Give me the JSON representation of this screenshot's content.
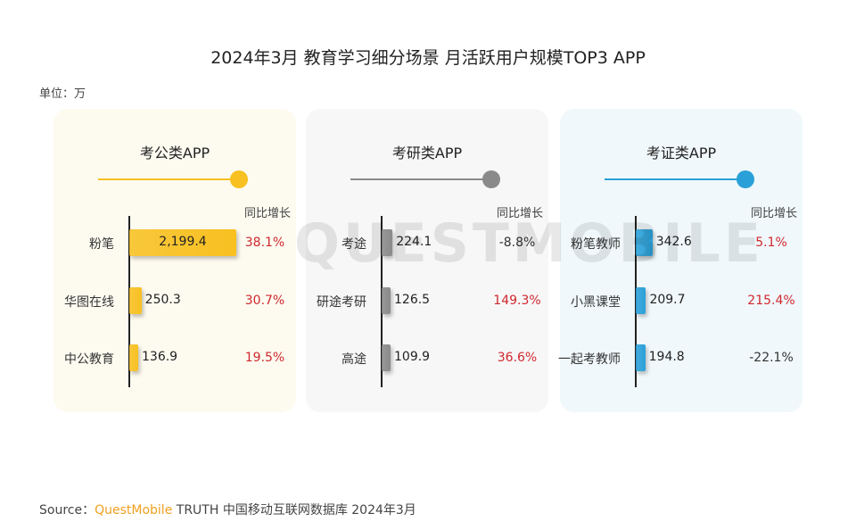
{
  "title": "2024年3月 教育学习细分场景 月活跃用户规模TOP3 APP",
  "unit": "单位：万",
  "watermark": "QUESTMOBILE",
  "source": {
    "prefix": "Source：",
    "brand": "QuestMobile",
    "rest": " TRUTH 中国移动互联网数据库 2024年3月"
  },
  "colors": {
    "positive": "#d0282e",
    "negative": "#333333"
  },
  "chart_data": {
    "type": "bar",
    "panels": [
      {
        "title": "考公类APP",
        "yoy_header": "同比增长",
        "color": "#f8c020",
        "bg": "#fdfbf0",
        "categories": [
          "粉笔",
          "华图在线",
          "中公教育"
        ],
        "values": [
          2199.4,
          250.3,
          136.9
        ],
        "labels": [
          "2,199.4",
          "250.3",
          "136.9"
        ],
        "yoy": [
          "38.1%",
          "30.7%",
          "19.5%"
        ]
      },
      {
        "title": "考研类APP",
        "yoy_header": "同比增长",
        "color": "#8a8a8a",
        "bg": "#f7f7f7",
        "categories": [
          "考途",
          "研途考研",
          "高途"
        ],
        "values": [
          224.1,
          126.5,
          109.9
        ],
        "labels": [
          "224.1",
          "126.5",
          "109.9"
        ],
        "yoy": [
          "-8.8%",
          "149.3%",
          "36.6%"
        ]
      },
      {
        "title": "考证类APP",
        "yoy_header": "同比增长",
        "color": "#2aa0d8",
        "bg": "#f0f8fb",
        "categories": [
          "粉笔教师",
          "小黑课堂",
          "一起考教师"
        ],
        "values": [
          342.6,
          209.7,
          194.8
        ],
        "labels": [
          "342.6",
          "209.7",
          "194.8"
        ],
        "yoy": [
          "5.1%",
          "215.4%",
          "-22.1%"
        ]
      }
    ]
  }
}
